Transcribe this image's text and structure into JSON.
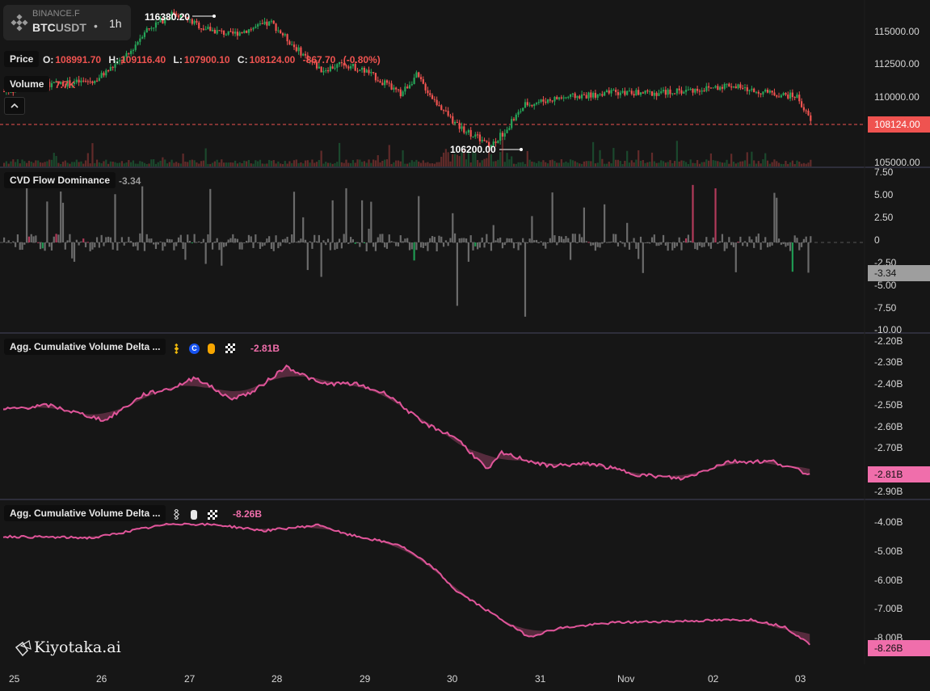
{
  "symbol": {
    "exchange": "BINANCE.F",
    "base": "BTC",
    "quote": "USDT",
    "interval": "1h",
    "separator": "•"
  },
  "price_pane": {
    "title": "Price",
    "ohlc": {
      "o_label": "O:",
      "o": "108991.70",
      "h_label": "H:",
      "h": "109116.40",
      "l_label": "L:",
      "l": "107900.10",
      "c_label": "C:",
      "c": "108124.00",
      "change": "-867.70",
      "change_pct": "(-0.80%)"
    },
    "high_marker": "116380.20",
    "low_marker": "106200.00",
    "axis": [
      "115000.00",
      "112500.00",
      "110000.00",
      "105000.00"
    ],
    "last_price": "108124.00",
    "collapse_icon": "chevron-up-icon"
  },
  "volume_pane": {
    "title": "Volume",
    "value": "7.7K"
  },
  "cvd_pane": {
    "title": "CVD Flow Dominance",
    "value": "-3.34",
    "axis": [
      "7.50",
      "5.00",
      "2.50",
      "0",
      "-2.50",
      "-5.00",
      "-7.50",
      "-10.00"
    ],
    "last": "-3.34"
  },
  "agg1_pane": {
    "title": "Agg. Cumulative Volume Delta ...",
    "value": "-2.81B",
    "axis": [
      "-2.20B",
      "-2.30B",
      "-2.40B",
      "-2.50B",
      "-2.60B",
      "-2.70B",
      "-2.90B"
    ],
    "last": "-2.81B",
    "icons": [
      "binance-icon",
      "coinbase-icon",
      "bybit-icon",
      "okx-icon"
    ]
  },
  "agg2_pane": {
    "title": "Agg. Cumulative Volume Delta ...",
    "value": "-8.26B",
    "axis": [
      "-4.00B",
      "-5.00B",
      "-6.00B",
      "-7.00B",
      "-8.00B"
    ],
    "last": "-8.26B",
    "icons": [
      "binance-icon",
      "tether-icon",
      "okx-icon"
    ]
  },
  "x_axis": [
    "25",
    "26",
    "27",
    "28",
    "29",
    "30",
    "31",
    "Nov",
    "02",
    "03"
  ],
  "watermark": "Kiyotaka.ai",
  "colors": {
    "up": "#26a659",
    "down": "#ef5350",
    "cvd_line": "#e0559a",
    "last_price_tag": "#ef5350",
    "cvd_tag": "#f06eab"
  },
  "chart_data": {
    "type": "candlestick",
    "interval": "1h",
    "x_ticks": [
      "25",
      "26",
      "27",
      "28",
      "29",
      "30",
      "31",
      "Nov",
      "02",
      "03"
    ],
    "price_anchor_points": [
      {
        "date": "25",
        "price": 110400
      },
      {
        "date": "26",
        "price": 111000
      },
      {
        "date": "27",
        "price": 115000
      },
      {
        "date": "27",
        "price": 116380.2
      },
      {
        "date": "28",
        "price": 114500
      },
      {
        "date": "28",
        "price": 115300
      },
      {
        "date": "29",
        "price": 112500
      },
      {
        "date": "30",
        "price": 111000
      },
      {
        "date": "30",
        "price": 106800
      },
      {
        "date": "31",
        "price": 106200
      },
      {
        "date": "31",
        "price": 109400
      },
      {
        "date": "Nov",
        "price": 110000
      },
      {
        "date": "02",
        "price": 110500
      },
      {
        "date": "03",
        "price": 110200
      },
      {
        "date": "03",
        "price": 108124
      }
    ],
    "cvd_flow_dominance_range": [
      -10,
      7.5
    ],
    "agg_cvd_1_range_b": [
      -2.9,
      -2.2
    ],
    "agg_cvd_2_range_b": [
      -8.3,
      -4.0
    ]
  }
}
